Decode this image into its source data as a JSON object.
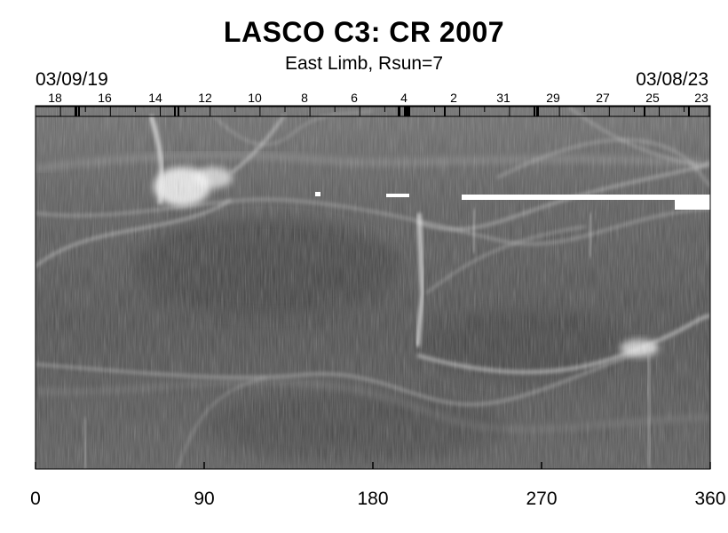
{
  "header": {
    "title": "LASCO C3: CR 2007",
    "subtitle": "East Limb, Rsun=7",
    "date_left": "03/09/19",
    "date_right": "03/08/23"
  },
  "day_ticks": [
    "18",
    "16",
    "14",
    "12",
    "10",
    "8",
    "6",
    "4",
    "2",
    "31",
    "29",
    "27",
    "25",
    "23"
  ],
  "x_axis": {
    "range": [
      0,
      360
    ],
    "tick_labels": [
      "0",
      "90",
      "180",
      "270",
      "360"
    ]
  },
  "colors": {
    "background": "#ffffff",
    "image_base": "#5a5a5a",
    "structure_bright": "#ffffff"
  }
}
